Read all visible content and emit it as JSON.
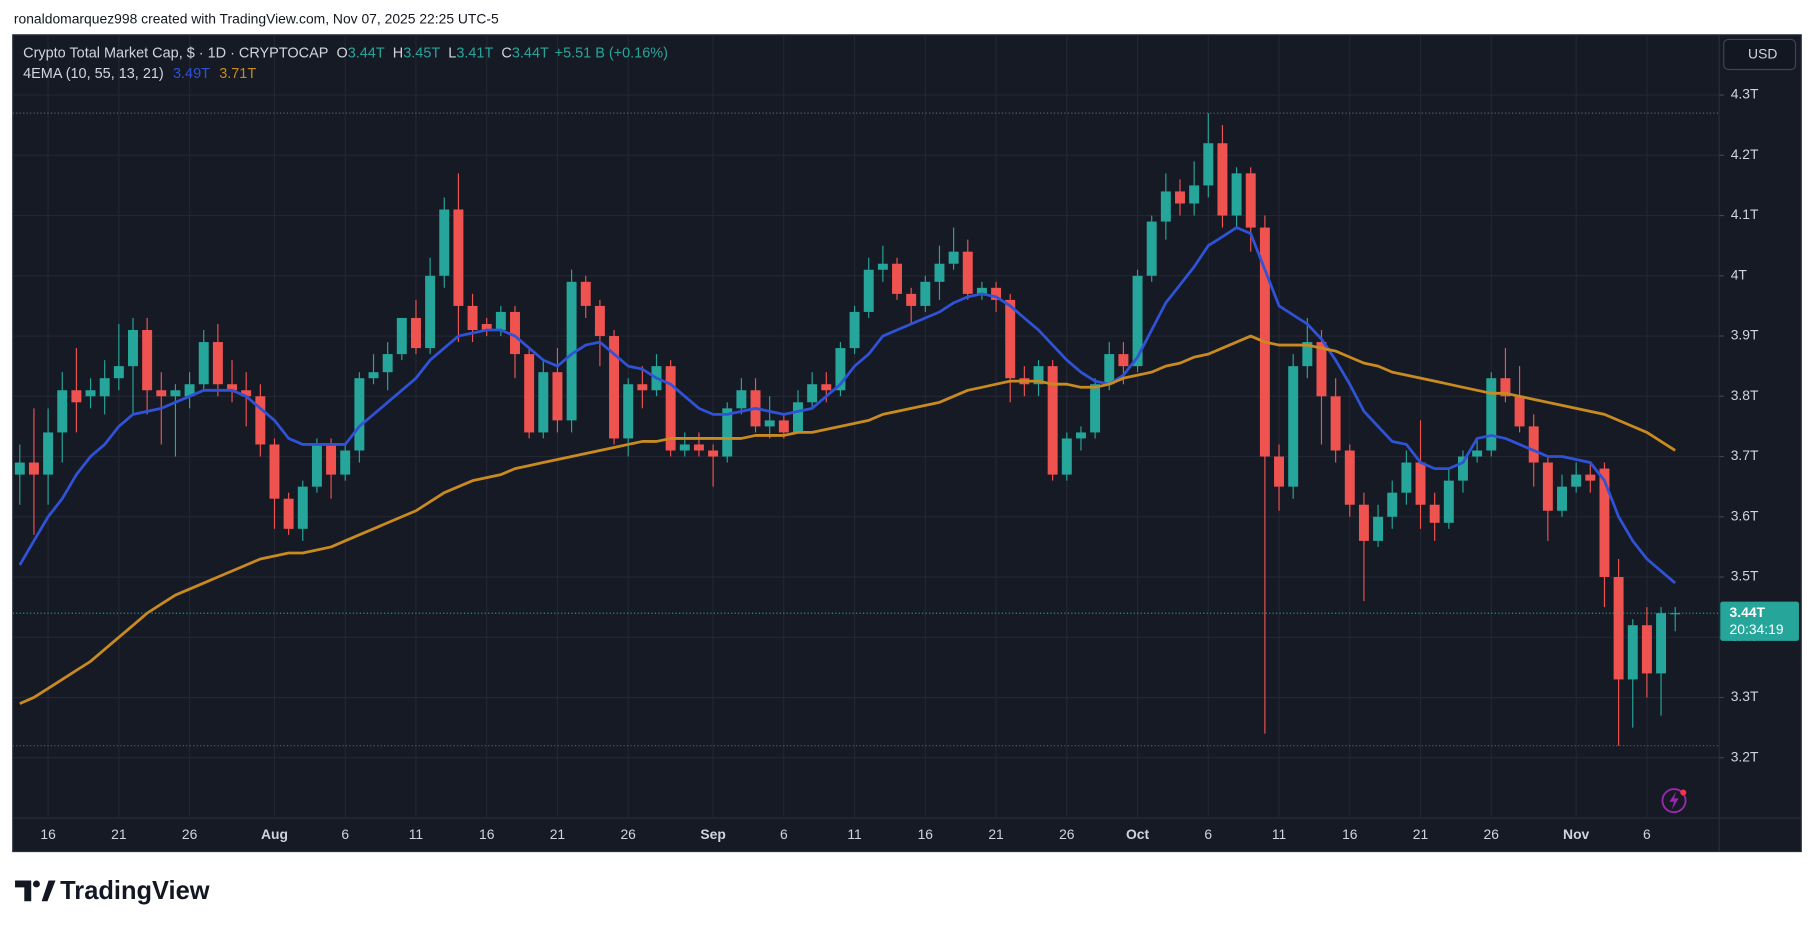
{
  "caption": "ronaldomarquez998 created with TradingView.com, Nov 07, 2025 22:25 UTC-5",
  "brand": "TradingView",
  "currency": "USD",
  "chart_data": {
    "type": "candlestick",
    "legend": {
      "symbol": "Crypto Total Market Cap, $ · 1D · CRYPTOCAP",
      "ohlc": [
        [
          "O",
          "3.44T"
        ],
        [
          "H",
          "3.45T"
        ],
        [
          "L",
          "3.41T"
        ],
        [
          "C",
          "3.44T"
        ]
      ],
      "change": "+5.51 B (+0.16%)",
      "indicator": "4EMA (10, 55, 13, 21)"
    },
    "last_price_label": "3.44T",
    "countdown": "20:34:19",
    "up_color": "#26a69a",
    "down_color": "#ef5350",
    "ylim": [
      3.1,
      4.4
    ],
    "yticks": [
      {
        "value": 3.2,
        "label": "3.2T"
      },
      {
        "value": 3.3,
        "label": "3.3T"
      },
      {
        "value": 3.4,
        "label": "3.4T"
      },
      {
        "value": 3.5,
        "label": "3.5T"
      },
      {
        "value": 3.6,
        "label": "3.6T"
      },
      {
        "value": 3.7,
        "label": "3.7T"
      },
      {
        "value": 3.8,
        "label": "3.8T"
      },
      {
        "value": 3.9,
        "label": "3.9T"
      },
      {
        "value": 4.0,
        "label": "4T"
      },
      {
        "value": 4.1,
        "label": "4.1T"
      },
      {
        "value": 4.2,
        "label": "4.2T"
      },
      {
        "value": 4.3,
        "label": "4.3T"
      }
    ],
    "grid": true,
    "categories": [
      null,
      null,
      "16",
      null,
      null,
      null,
      null,
      "21",
      null,
      null,
      null,
      null,
      "26",
      null,
      null,
      null,
      null,
      null,
      "Aug",
      null,
      null,
      null,
      null,
      "6",
      null,
      null,
      null,
      null,
      "11",
      null,
      null,
      null,
      null,
      "16",
      null,
      null,
      null,
      null,
      "21",
      null,
      null,
      null,
      null,
      "26",
      null,
      null,
      null,
      null,
      null,
      "Sep",
      null,
      null,
      null,
      null,
      "6",
      null,
      null,
      null,
      null,
      "11",
      null,
      null,
      null,
      null,
      "16",
      null,
      null,
      null,
      null,
      "21",
      null,
      null,
      null,
      null,
      "26",
      null,
      null,
      null,
      null,
      "Oct",
      null,
      null,
      null,
      null,
      "6",
      null,
      null,
      null,
      null,
      "11",
      null,
      null,
      null,
      null,
      "16",
      null,
      null,
      null,
      null,
      "21",
      null,
      null,
      null,
      null,
      "26",
      null,
      null,
      null,
      null,
      null,
      "Nov",
      null,
      null,
      null,
      null,
      "6",
      null,
      null
    ],
    "open": [
      3.67,
      3.69,
      3.67,
      3.74,
      3.81,
      3.8,
      3.8,
      3.83,
      3.85,
      3.91,
      3.81,
      3.8,
      3.8,
      3.82,
      3.89,
      3.82,
      3.81,
      3.8,
      3.72,
      3.63,
      3.58,
      3.65,
      3.72,
      3.67,
      3.71,
      3.83,
      3.84,
      3.87,
      3.93,
      3.88,
      4.0,
      4.11,
      3.95,
      3.92,
      3.91,
      3.94,
      3.87,
      3.74,
      3.84,
      3.76,
      3.99,
      3.95,
      3.9,
      3.73,
      3.82,
      3.81,
      3.85,
      3.71,
      3.72,
      3.71,
      3.7,
      3.78,
      3.81,
      3.75,
      3.76,
      3.74,
      3.79,
      3.82,
      3.81,
      3.88,
      3.94,
      4.01,
      4.02,
      3.97,
      3.95,
      3.99,
      4.02,
      4.04,
      3.97,
      3.98,
      3.96,
      3.83,
      3.82,
      3.85,
      3.67,
      3.73,
      3.74,
      3.82,
      3.87,
      3.85,
      4.0,
      4.09,
      4.14,
      4.12,
      4.15,
      4.22,
      4.1,
      4.17,
      4.08,
      3.7,
      3.65,
      3.85,
      3.89,
      3.8,
      3.71,
      3.62,
      3.56,
      3.6,
      3.64,
      3.69,
      3.62,
      3.59,
      3.66,
      3.7,
      3.71,
      3.83,
      3.8,
      3.75,
      3.69,
      3.61,
      3.65,
      3.67,
      3.68,
      3.5,
      3.33,
      3.42,
      3.34,
      3.44
    ],
    "high": [
      3.72,
      3.78,
      3.78,
      3.84,
      3.88,
      3.83,
      3.86,
      3.92,
      3.93,
      3.93,
      3.84,
      3.82,
      3.84,
      3.91,
      3.92,
      3.86,
      3.84,
      3.82,
      3.73,
      3.64,
      3.66,
      3.73,
      3.73,
      3.72,
      3.84,
      3.87,
      3.89,
      3.93,
      3.96,
      4.03,
      4.13,
      4.17,
      3.97,
      3.93,
      3.95,
      3.95,
      3.88,
      3.86,
      3.88,
      4.01,
      4.0,
      3.96,
      3.91,
      3.83,
      3.85,
      3.87,
      3.86,
      3.74,
      3.74,
      3.72,
      3.79,
      3.83,
      3.83,
      3.8,
      3.77,
      3.81,
      3.84,
      3.84,
      3.89,
      3.95,
      4.03,
      4.05,
      4.03,
      3.98,
      4.0,
      4.05,
      4.08,
      4.06,
      3.99,
      3.99,
      3.97,
      3.85,
      3.86,
      3.86,
      3.74,
      3.75,
      3.83,
      3.89,
      3.89,
      4.01,
      4.1,
      4.17,
      4.16,
      4.19,
      4.27,
      4.25,
      4.18,
      4.18,
      4.1,
      3.72,
      3.87,
      3.93,
      3.91,
      3.83,
      3.72,
      3.64,
      3.62,
      3.66,
      3.71,
      3.76,
      3.64,
      3.68,
      3.71,
      3.73,
      3.84,
      3.88,
      3.85,
      3.77,
      3.7,
      3.67,
      3.69,
      3.69,
      3.69,
      3.53,
      3.43,
      3.45,
      3.45,
      3.45
    ],
    "low": [
      3.62,
      3.57,
      3.62,
      3.69,
      3.74,
      3.78,
      3.77,
      3.81,
      3.77,
      3.77,
      3.72,
      3.7,
      3.78,
      3.81,
      3.8,
      3.79,
      3.75,
      3.7,
      3.58,
      3.57,
      3.56,
      3.64,
      3.63,
      3.66,
      3.69,
      3.82,
      3.81,
      3.86,
      3.87,
      3.87,
      3.98,
      3.89,
      3.89,
      3.9,
      3.9,
      3.83,
      3.73,
      3.73,
      3.74,
      3.74,
      3.93,
      3.85,
      3.72,
      3.7,
      3.78,
      3.8,
      3.7,
      3.7,
      3.7,
      3.65,
      3.69,
      3.77,
      3.74,
      3.73,
      3.73,
      3.74,
      3.78,
      3.79,
      3.8,
      3.87,
      3.93,
      3.99,
      3.96,
      3.92,
      3.94,
      3.96,
      4.01,
      3.96,
      3.96,
      3.94,
      3.79,
      3.8,
      3.8,
      3.66,
      3.66,
      3.71,
      3.73,
      3.81,
      3.82,
      3.84,
      3.99,
      4.06,
      4.1,
      4.1,
      4.13,
      4.08,
      4.08,
      4.04,
      3.24,
      3.61,
      3.63,
      3.83,
      3.72,
      3.69,
      3.6,
      3.46,
      3.55,
      3.58,
      3.62,
      3.58,
      3.56,
      3.58,
      3.64,
      3.69,
      3.7,
      3.79,
      3.74,
      3.65,
      3.56,
      3.6,
      3.64,
      3.64,
      3.45,
      3.22,
      3.25,
      3.3,
      3.27,
      3.41
    ],
    "close": [
      3.69,
      3.67,
      3.74,
      3.81,
      3.79,
      3.81,
      3.83,
      3.85,
      3.91,
      3.81,
      3.8,
      3.81,
      3.82,
      3.89,
      3.82,
      3.81,
      3.8,
      3.72,
      3.63,
      3.58,
      3.65,
      3.72,
      3.67,
      3.71,
      3.83,
      3.84,
      3.87,
      3.93,
      3.88,
      4.0,
      4.11,
      3.95,
      3.91,
      3.91,
      3.94,
      3.87,
      3.74,
      3.84,
      3.76,
      3.99,
      3.95,
      3.9,
      3.73,
      3.82,
      3.81,
      3.85,
      3.71,
      3.72,
      3.71,
      3.7,
      3.78,
      3.81,
      3.75,
      3.76,
      3.74,
      3.79,
      3.82,
      3.81,
      3.88,
      3.94,
      4.01,
      4.02,
      3.97,
      3.95,
      3.99,
      4.02,
      4.04,
      3.97,
      3.98,
      3.96,
      3.83,
      3.82,
      3.85,
      3.67,
      3.73,
      3.74,
      3.82,
      3.87,
      3.85,
      4.0,
      4.09,
      4.14,
      4.12,
      4.15,
      4.22,
      4.1,
      4.17,
      4.08,
      3.7,
      3.65,
      3.85,
      3.89,
      3.8,
      3.71,
      3.62,
      3.56,
      3.6,
      3.64,
      3.69,
      3.62,
      3.59,
      3.66,
      3.7,
      3.71,
      3.83,
      3.8,
      3.75,
      3.69,
      3.61,
      3.65,
      3.67,
      3.66,
      3.5,
      3.33,
      3.42,
      3.34,
      3.44,
      3.44
    ],
    "overlays": [
      {
        "color": "#2f52d6",
        "label": "3.49T",
        "values": [
          3.52,
          3.56,
          3.6,
          3.63,
          3.67,
          3.7,
          3.72,
          3.75,
          3.77,
          3.775,
          3.78,
          3.79,
          3.8,
          3.81,
          3.81,
          3.81,
          3.8,
          3.78,
          3.76,
          3.73,
          3.72,
          3.72,
          3.72,
          3.72,
          3.75,
          3.77,
          3.79,
          3.81,
          3.83,
          3.86,
          3.88,
          3.9,
          3.905,
          3.91,
          3.91,
          3.9,
          3.88,
          3.86,
          3.85,
          3.87,
          3.885,
          3.89,
          3.87,
          3.85,
          3.845,
          3.83,
          3.82,
          3.8,
          3.78,
          3.77,
          3.77,
          3.775,
          3.78,
          3.775,
          3.77,
          3.775,
          3.78,
          3.8,
          3.82,
          3.85,
          3.87,
          3.9,
          3.91,
          3.92,
          3.93,
          3.94,
          3.955,
          3.965,
          3.97,
          3.965,
          3.95,
          3.93,
          3.91,
          3.885,
          3.86,
          3.84,
          3.825,
          3.82,
          3.835,
          3.865,
          3.91,
          3.955,
          3.985,
          4.015,
          4.05,
          4.065,
          4.08,
          4.07,
          4.01,
          3.95,
          3.935,
          3.92,
          3.895,
          3.86,
          3.82,
          3.775,
          3.75,
          3.725,
          3.72,
          3.69,
          3.68,
          3.68,
          3.69,
          3.73,
          3.735,
          3.73,
          3.72,
          3.71,
          3.7,
          3.7,
          3.695,
          3.69,
          3.66,
          3.6,
          3.56,
          3.53,
          3.51,
          3.49
        ]
      },
      {
        "color": "#c98a1f",
        "label": "3.71T",
        "values": [
          3.29,
          3.3,
          3.315,
          3.33,
          3.345,
          3.36,
          3.38,
          3.4,
          3.42,
          3.44,
          3.455,
          3.47,
          3.48,
          3.49,
          3.5,
          3.51,
          3.52,
          3.53,
          3.535,
          3.54,
          3.54,
          3.545,
          3.55,
          3.56,
          3.57,
          3.58,
          3.59,
          3.6,
          3.61,
          3.625,
          3.64,
          3.65,
          3.66,
          3.665,
          3.67,
          3.68,
          3.685,
          3.69,
          3.695,
          3.7,
          3.705,
          3.71,
          3.715,
          3.72,
          3.725,
          3.725,
          3.73,
          3.73,
          3.73,
          3.73,
          3.73,
          3.73,
          3.735,
          3.735,
          3.735,
          3.74,
          3.74,
          3.745,
          3.75,
          3.755,
          3.76,
          3.77,
          3.775,
          3.78,
          3.785,
          3.79,
          3.8,
          3.81,
          3.815,
          3.82,
          3.825,
          3.825,
          3.825,
          3.82,
          3.82,
          3.815,
          3.815,
          3.82,
          3.83,
          3.835,
          3.84,
          3.85,
          3.855,
          3.865,
          3.87,
          3.88,
          3.89,
          3.9,
          3.89,
          3.885,
          3.885,
          3.885,
          3.88,
          3.875,
          3.865,
          3.855,
          3.85,
          3.84,
          3.835,
          3.83,
          3.825,
          3.82,
          3.815,
          3.81,
          3.805,
          3.805,
          3.8,
          3.795,
          3.79,
          3.785,
          3.78,
          3.775,
          3.77,
          3.76,
          3.75,
          3.74,
          3.725,
          3.71
        ]
      }
    ]
  }
}
